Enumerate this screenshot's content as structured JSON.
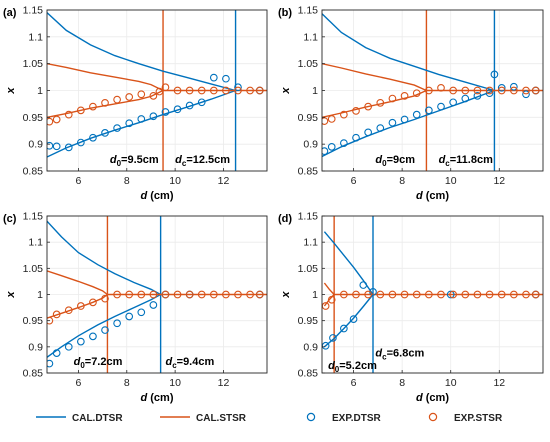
{
  "colors": {
    "dtsr": "#0072BD",
    "stsr": "#D95319",
    "axis": "#262626",
    "grid": "#ebebeb"
  },
  "legend": [
    {
      "label": "CAL.DTSR",
      "kind": "line",
      "series": "dtsr"
    },
    {
      "label": "CAL.STSR",
      "kind": "line",
      "series": "stsr"
    },
    {
      "label": "EXP.DTSR",
      "kind": "marker",
      "series": "dtsr"
    },
    {
      "label": "EXP.STSR",
      "kind": "marker",
      "series": "stsr"
    }
  ],
  "chart_data": [
    {
      "type": "line",
      "panel_label": "(a)",
      "xlabel": "d",
      "xunit": "(cm)",
      "ylabel": "x",
      "xlim": [
        4.7,
        13.8
      ],
      "ylim": [
        0.85,
        1.15
      ],
      "xticks": [
        6,
        8,
        10,
        12
      ],
      "yticks": [
        0.85,
        0.9,
        0.95,
        1,
        1.05,
        1.1,
        1.15
      ],
      "ytick_labels": [
        "0.85",
        "0.9",
        "0.95",
        "1",
        "1.05",
        "1.1",
        "1.15"
      ],
      "grid": true,
      "d0": 9.5,
      "dc": 12.5,
      "annotations": [
        {
          "sym": "d",
          "sub": "0",
          "value": "=9.5cm",
          "x": 7.3,
          "y": 0.865
        },
        {
          "sym": "d",
          "sub": "c",
          "value": "=12.5cm",
          "x": 10.0,
          "y": 0.865
        }
      ],
      "cal_dtsr_upper": {
        "x": [
          4.7,
          5.5,
          6.5,
          7.5,
          8.5,
          9.5,
          10.5,
          11.5,
          12.5
        ],
        "y": [
          1.145,
          1.112,
          1.085,
          1.065,
          1.05,
          1.036,
          1.024,
          1.012,
          1.0
        ]
      },
      "cal_dtsr_lower": {
        "x": [
          4.7,
          5.5,
          6.5,
          7.5,
          8.5,
          9.5,
          10.5,
          11.5,
          12.5
        ],
        "y": [
          0.876,
          0.893,
          0.911,
          0.926,
          0.94,
          0.955,
          0.969,
          0.984,
          1.0
        ]
      },
      "cal_stsr_upper": {
        "x": [
          4.7,
          5.5,
          6.5,
          7.5,
          8.5,
          9.0,
          9.5
        ],
        "y": [
          1.05,
          1.043,
          1.033,
          1.025,
          1.017,
          1.011,
          1.0
        ]
      },
      "cal_stsr_lower": {
        "x": [
          4.7,
          5.5,
          6.5,
          7.5,
          8.5,
          9.0,
          9.5
        ],
        "y": [
          0.95,
          0.957,
          0.967,
          0.975,
          0.983,
          0.989,
          1.0
        ]
      },
      "cal_plateau_x": [
        9.5,
        13.8
      ],
      "exp_dtsr": {
        "x": [
          4.8,
          5.1,
          5.6,
          6.1,
          6.6,
          7.1,
          7.6,
          8.1,
          8.6,
          9.1,
          9.6,
          10.1,
          10.6,
          11.1,
          11.6,
          12.1,
          12.6,
          13.5
        ],
        "y": [
          0.897,
          0.896,
          0.894,
          0.903,
          0.912,
          0.921,
          0.93,
          0.939,
          0.947,
          0.952,
          0.96,
          0.965,
          0.972,
          0.978,
          1.024,
          1.022,
          1.006,
          1.0
        ]
      },
      "exp_stsr": {
        "x": [
          4.8,
          5.1,
          5.6,
          6.1,
          6.6,
          7.1,
          7.6,
          8.1,
          8.6,
          9.1,
          9.35,
          9.6,
          10.1,
          10.6,
          11.1,
          11.6,
          12.1,
          12.6,
          13.1,
          13.5
        ],
        "y": [
          0.942,
          0.946,
          0.955,
          0.963,
          0.97,
          0.977,
          0.983,
          0.988,
          0.993,
          0.99,
          0.998,
          1.006,
          1.0,
          1.0,
          1.0,
          1.0,
          1.0,
          1.0,
          1.0,
          1.0
        ]
      }
    },
    {
      "type": "line",
      "panel_label": "(b)",
      "xlabel": "d",
      "xunit": "(cm)",
      "ylabel": "x",
      "xlim": [
        4.7,
        13.8
      ],
      "ylim": [
        0.85,
        1.15
      ],
      "xticks": [
        6,
        8,
        10,
        12
      ],
      "yticks": [
        0.85,
        0.9,
        0.95,
        1,
        1.05,
        1.1,
        1.15
      ],
      "ytick_labels": [
        "0.85",
        "0.9",
        "0.95",
        "1",
        "1.05",
        "1.1",
        "1.15"
      ],
      "grid": true,
      "d0": 9.0,
      "dc": 11.8,
      "annotations": [
        {
          "sym": "d",
          "sub": "0",
          "value": "=9cm",
          "x": 6.9,
          "y": 0.865
        },
        {
          "sym": "d",
          "sub": "c",
          "value": "=11.8cm",
          "x": 9.5,
          "y": 0.865
        }
      ],
      "cal_dtsr_upper": {
        "x": [
          4.7,
          5.5,
          6.5,
          7.5,
          8.5,
          9.5,
          10.5,
          11.8
        ],
        "y": [
          1.143,
          1.108,
          1.08,
          1.06,
          1.045,
          1.03,
          1.017,
          1.0
        ]
      },
      "cal_dtsr_lower": {
        "x": [
          4.7,
          5.5,
          6.5,
          7.5,
          8.5,
          9.5,
          10.5,
          11.8
        ],
        "y": [
          0.877,
          0.895,
          0.914,
          0.931,
          0.946,
          0.962,
          0.978,
          1.0
        ]
      },
      "cal_stsr_upper": {
        "x": [
          4.7,
          5.5,
          6.5,
          7.5,
          8.5,
          9.0
        ],
        "y": [
          1.05,
          1.042,
          1.031,
          1.021,
          1.01,
          1.0
        ]
      },
      "cal_stsr_lower": {
        "x": [
          4.7,
          5.5,
          6.5,
          7.5,
          8.5,
          9.0
        ],
        "y": [
          0.95,
          0.958,
          0.969,
          0.979,
          0.99,
          1.0
        ]
      },
      "cal_plateau_x": [
        9.0,
        13.8
      ],
      "exp_dtsr": {
        "x": [
          4.8,
          5.1,
          5.6,
          6.1,
          6.6,
          7.1,
          7.6,
          8.1,
          8.6,
          9.1,
          9.6,
          10.1,
          10.6,
          11.1,
          11.6,
          11.8,
          12.1,
          12.6,
          13.1,
          13.5
        ],
        "y": [
          0.887,
          0.895,
          0.902,
          0.912,
          0.922,
          0.93,
          0.94,
          0.946,
          0.955,
          0.963,
          0.97,
          0.978,
          0.985,
          0.99,
          0.995,
          1.03,
          1.005,
          1.007,
          0.993,
          1.0
        ]
      },
      "exp_stsr": {
        "x": [
          4.8,
          5.1,
          5.6,
          6.1,
          6.6,
          7.1,
          7.6,
          8.1,
          8.6,
          9.1,
          9.6,
          10.1,
          10.6,
          11.1,
          11.6,
          12.1,
          12.6,
          13.1,
          13.5
        ],
        "y": [
          0.943,
          0.947,
          0.955,
          0.962,
          0.97,
          0.977,
          0.985,
          0.99,
          0.995,
          1.0,
          1.005,
          1.0,
          1.0,
          1.0,
          1.0,
          1.0,
          1.0,
          1.0,
          1.0
        ]
      }
    },
    {
      "type": "line",
      "panel_label": "(c)",
      "xlabel": "d",
      "xunit": "(cm)",
      "ylabel": "x",
      "xlim": [
        4.7,
        13.8
      ],
      "ylim": [
        0.85,
        1.15
      ],
      "xticks": [
        6,
        8,
        10,
        12
      ],
      "yticks": [
        0.85,
        0.9,
        0.95,
        1,
        1.05,
        1.1,
        1.15
      ],
      "ytick_labels": [
        "0.85",
        "0.9",
        "0.95",
        "1",
        "1.05",
        "1.1",
        "1.15"
      ],
      "grid": true,
      "d0": 7.2,
      "dc": 9.4,
      "annotations": [
        {
          "sym": "d",
          "sub": "0",
          "value": "=7.2cm",
          "x": 5.8,
          "y": 0.865
        },
        {
          "sym": "d",
          "sub": "c",
          "value": "=9.4cm",
          "x": 9.6,
          "y": 0.865
        }
      ],
      "cal_dtsr_upper": {
        "x": [
          4.7,
          5.3,
          6.0,
          6.8,
          7.5,
          8.3,
          9.0,
          9.4
        ],
        "y": [
          1.14,
          1.11,
          1.08,
          1.057,
          1.04,
          1.023,
          1.01,
          1.0
        ]
      },
      "cal_dtsr_lower": {
        "x": [
          4.7,
          5.3,
          6.0,
          6.8,
          7.5,
          8.3,
          9.0,
          9.4
        ],
        "y": [
          0.88,
          0.9,
          0.921,
          0.942,
          0.958,
          0.975,
          0.99,
          1.0
        ]
      },
      "cal_stsr_upper": {
        "x": [
          4.7,
          5.3,
          6.0,
          6.6,
          7.0,
          7.2
        ],
        "y": [
          1.045,
          1.036,
          1.025,
          1.015,
          1.007,
          1.0
        ]
      },
      "cal_stsr_lower": {
        "x": [
          4.7,
          5.3,
          6.0,
          6.6,
          7.0,
          7.2
        ],
        "y": [
          0.955,
          0.964,
          0.975,
          0.985,
          0.993,
          1.0
        ]
      },
      "cal_plateau_x": [
        7.2,
        13.8
      ],
      "exp_dtsr": {
        "x": [
          4.8,
          5.1,
          5.6,
          6.1,
          6.6,
          7.1,
          7.6,
          8.1,
          8.6,
          9.1,
          9.6,
          10.6,
          13.5
        ],
        "y": [
          0.868,
          0.888,
          0.9,
          0.91,
          0.92,
          0.932,
          0.945,
          0.958,
          0.966,
          0.98,
          1.0,
          1.0,
          1.0
        ]
      },
      "exp_stsr": {
        "x": [
          4.8,
          5.1,
          5.6,
          6.1,
          6.6,
          7.1,
          7.6,
          8.1,
          8.6,
          9.1,
          9.6,
          10.1,
          10.6,
          11.1,
          11.6,
          12.1,
          12.6,
          13.1,
          13.5
        ],
        "y": [
          0.95,
          0.962,
          0.97,
          0.978,
          0.985,
          0.992,
          1.0,
          1.0,
          1.0,
          1.0,
          1.0,
          1.0,
          1.0,
          1.0,
          1.0,
          1.0,
          1.0,
          1.0,
          1.0
        ]
      }
    },
    {
      "type": "line",
      "panel_label": "(d)",
      "xlabel": "d",
      "xunit": "(cm)",
      "ylabel": "x",
      "xlim": [
        4.7,
        13.8
      ],
      "ylim": [
        0.85,
        1.15
      ],
      "xticks": [
        6,
        8,
        10,
        12
      ],
      "yticks": [
        0.85,
        0.9,
        0.95,
        1,
        1.05,
        1.1,
        1.15
      ],
      "ytick_labels": [
        "0.85",
        "0.9",
        "0.95",
        "1",
        "1.05",
        "1.1",
        "1.15"
      ],
      "grid": true,
      "d0": 5.2,
      "dc": 6.8,
      "annotations": [
        {
          "sym": "d",
          "sub": "c",
          "value": "=6.8cm",
          "x": 6.9,
          "y": 0.882
        },
        {
          "sym": "d",
          "sub": "0",
          "value": "=5.2cm",
          "x": 4.95,
          "y": 0.858
        }
      ],
      "cal_dtsr_upper": {
        "x": [
          4.8,
          5.2,
          5.6,
          6.0,
          6.4,
          6.8
        ],
        "y": [
          1.12,
          1.098,
          1.075,
          1.052,
          1.027,
          1.0
        ]
      },
      "cal_dtsr_lower": {
        "x": [
          4.8,
          5.2,
          5.6,
          6.0,
          6.4,
          6.8
        ],
        "y": [
          0.9,
          0.916,
          0.935,
          0.955,
          0.977,
          1.0
        ]
      },
      "cal_stsr_upper": {
        "x": [
          4.8,
          5.0,
          5.2
        ],
        "y": [
          1.022,
          1.01,
          1.0
        ]
      },
      "cal_stsr_lower": {
        "x": [
          4.8,
          5.0,
          5.2
        ],
        "y": [
          0.978,
          0.99,
          1.0
        ]
      },
      "cal_plateau_x": [
        5.2,
        13.8
      ],
      "exp_dtsr": {
        "x": [
          4.85,
          5.15,
          5.6,
          6.0,
          6.4,
          6.8,
          10.0,
          13.5
        ],
        "y": [
          0.902,
          0.917,
          0.935,
          0.953,
          1.018,
          1.005,
          1.0,
          1.0
        ]
      },
      "exp_stsr": {
        "x": [
          4.85,
          5.1,
          5.6,
          6.1,
          6.6,
          7.1,
          7.6,
          8.1,
          8.6,
          9.1,
          9.6,
          10.1,
          10.6,
          11.1,
          11.6,
          12.1,
          12.6,
          13.1,
          13.5
        ],
        "y": [
          0.978,
          0.99,
          1.0,
          1.0,
          1.0,
          1.0,
          1.0,
          1.0,
          1.0,
          1.0,
          1.0,
          1.0,
          1.0,
          1.0,
          1.0,
          1.0,
          1.0,
          1.0,
          1.0
        ]
      }
    }
  ]
}
